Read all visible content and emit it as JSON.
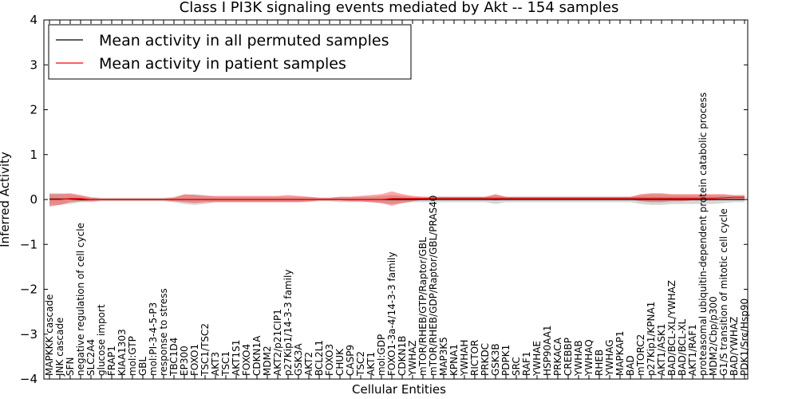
{
  "chart_data": {
    "type": "line",
    "title": "Class I PI3K signaling events mediated by Akt -- 154 samples",
    "xlabel": "Cellular Entities",
    "ylabel": "Inferred Activity",
    "ylim": [
      -4,
      4
    ],
    "yticks": [
      -4,
      -3,
      -2,
      -1,
      0,
      1,
      2,
      3,
      4
    ],
    "ytick_labels": [
      "−4",
      "−3",
      "−2",
      "−1",
      "0",
      "1",
      "2",
      "3",
      "4"
    ],
    "legend_position": "top-left",
    "categories": [
      "MAPKKK cascade",
      "JNK cascade",
      "SFN",
      "negative regulation of cell cycle",
      "SLC2A4",
      "glucose import",
      "FRAP1",
      "KIAA1303",
      "mol:GTP",
      "GBL",
      "mol:PI-3-4-5-P3",
      "response to stress",
      "TBC1D4",
      "EP300",
      "FOXO1",
      "TSC1/TSC2",
      "AKT3",
      "TSC1",
      "AKT1S1",
      "FOXO4",
      "CDKN1A",
      "MDM2",
      "AKT2/p21CIP1",
      "p27Kip1/14-3-3 family",
      "GSK3A",
      "AKT2",
      "BCL2L1",
      "FOXO3",
      "CHUK",
      "CASP9",
      "TSC2",
      "AKT1",
      "mol:GDP",
      "FOXO1-3a-4/14-3-3 family",
      "CDKN1B",
      "YWHAZ",
      "mTOR/RHEB/GTP/Raptor/GBL",
      "mTOR/RHEB/GDP/Raptor/GBL/PRAS40",
      "MAP3K5",
      "KPNA1",
      "YWHAH",
      "RICTOR",
      "PRKDC",
      "GSK3B",
      "PDPK1",
      "SRC",
      "RAF1",
      "YWHAE",
      "HSP90AA1",
      "PRKACA",
      "CREBBP",
      "YWHAB",
      "YWHAQ",
      "RHEB",
      "YWHAG",
      "MAPKAP1",
      "BAD",
      "mTORC2",
      "p27Kip1/KPNA1",
      "AKT1/ASK1",
      "BAD/BCL-XL/YWHAZ",
      "BAD/BCL-XL",
      "AKT1/RAF1",
      "proteasomal ubiquitin-dependent protein catabolic process",
      "MDM2/Cbp/p300",
      "G1/S transition of mitotic cell cycle",
      "BAD/YWHAZ",
      "PDK1/Src/Hsp90"
    ],
    "series": [
      {
        "name": "Mean activity in all permuted samples",
        "color": "#000000",
        "values": [
          0.01,
          0.01,
          0.01,
          0.0,
          0.0,
          0.0,
          0.0,
          0.0,
          0.0,
          0.0,
          0.0,
          0.0,
          0.0,
          0.0,
          0.0,
          0.0,
          0.0,
          0.0,
          0.0,
          0.0,
          0.0,
          0.0,
          0.0,
          0.0,
          0.0,
          0.0,
          0.0,
          0.0,
          0.0,
          0.0,
          0.0,
          0.0,
          0.0,
          0.0,
          0.0,
          0.0,
          0.0,
          0.0,
          0.0,
          0.0,
          0.0,
          0.0,
          0.0,
          0.0,
          0.0,
          0.0,
          0.0,
          0.0,
          0.0,
          0.0,
          0.0,
          0.0,
          0.0,
          0.0,
          0.0,
          0.0,
          0.0,
          0.0,
          0.0,
          0.0,
          0.0,
          0.0,
          0.0,
          0.0,
          0.0,
          0.0,
          0.0,
          0.0
        ],
        "band_lower": [
          -0.12,
          -0.12,
          -0.1,
          -0.06,
          -0.06,
          -0.04,
          -0.04,
          -0.04,
          -0.04,
          -0.04,
          -0.04,
          -0.04,
          -0.06,
          -0.1,
          -0.12,
          -0.1,
          -0.06,
          -0.06,
          -0.06,
          -0.06,
          -0.06,
          -0.06,
          -0.06,
          -0.06,
          -0.06,
          -0.06,
          -0.04,
          -0.04,
          -0.06,
          -0.06,
          -0.06,
          -0.06,
          -0.08,
          -0.1,
          -0.08,
          -0.06,
          -0.06,
          -0.06,
          -0.06,
          -0.06,
          -0.06,
          -0.06,
          -0.06,
          -0.1,
          -0.06,
          -0.06,
          -0.06,
          -0.06,
          -0.06,
          -0.06,
          -0.06,
          -0.06,
          -0.06,
          -0.06,
          -0.06,
          -0.06,
          -0.06,
          -0.1,
          -0.12,
          -0.12,
          -0.1,
          -0.1,
          -0.1,
          -0.1,
          -0.1,
          -0.08,
          -0.06,
          -0.06
        ],
        "band_upper": [
          0.14,
          0.14,
          0.12,
          0.08,
          0.06,
          0.04,
          0.04,
          0.04,
          0.04,
          0.04,
          0.04,
          0.04,
          0.06,
          0.1,
          0.12,
          0.1,
          0.06,
          0.06,
          0.06,
          0.06,
          0.06,
          0.06,
          0.06,
          0.06,
          0.06,
          0.06,
          0.04,
          0.04,
          0.06,
          0.06,
          0.06,
          0.06,
          0.08,
          0.1,
          0.08,
          0.06,
          0.06,
          0.06,
          0.06,
          0.06,
          0.06,
          0.06,
          0.06,
          0.1,
          0.06,
          0.06,
          0.06,
          0.06,
          0.06,
          0.06,
          0.06,
          0.06,
          0.06,
          0.06,
          0.06,
          0.06,
          0.06,
          0.1,
          0.12,
          0.12,
          0.1,
          0.1,
          0.1,
          0.1,
          0.1,
          0.1,
          0.08,
          0.08
        ]
      },
      {
        "name": "Mean activity in patient samples",
        "color": "#ff0000",
        "values": [
          0.0,
          0.0,
          0.02,
          0.02,
          0.0,
          0.0,
          0.0,
          0.0,
          0.0,
          0.0,
          0.0,
          0.0,
          0.0,
          0.0,
          0.0,
          0.0,
          0.0,
          0.0,
          0.0,
          0.0,
          0.0,
          0.0,
          0.0,
          0.0,
          0.0,
          0.0,
          0.0,
          0.0,
          0.0,
          0.0,
          0.0,
          0.0,
          0.0,
          0.02,
          0.02,
          0.02,
          0.02,
          0.03,
          0.03,
          0.03,
          0.03,
          0.03,
          0.03,
          0.03,
          0.03,
          0.03,
          0.03,
          0.03,
          0.03,
          0.03,
          0.03,
          0.03,
          0.03,
          0.03,
          0.03,
          0.03,
          0.03,
          0.03,
          0.03,
          0.03,
          0.03,
          0.03,
          0.03,
          0.03,
          0.03,
          0.04,
          0.05,
          0.05
        ],
        "band_lower": [
          -0.16,
          -0.12,
          -0.06,
          -0.04,
          -0.04,
          -0.02,
          -0.02,
          -0.02,
          -0.02,
          -0.02,
          -0.02,
          -0.02,
          -0.04,
          -0.06,
          -0.08,
          -0.06,
          -0.06,
          -0.06,
          -0.06,
          -0.06,
          -0.06,
          -0.06,
          -0.06,
          -0.06,
          -0.06,
          -0.04,
          -0.02,
          -0.02,
          -0.02,
          -0.04,
          -0.04,
          -0.06,
          -0.08,
          -0.14,
          -0.08,
          -0.04,
          0.0,
          0.0,
          0.0,
          0.0,
          0.0,
          0.0,
          0.0,
          -0.02,
          0.0,
          0.0,
          0.0,
          0.0,
          0.0,
          0.0,
          0.0,
          0.0,
          0.0,
          0.0,
          0.0,
          0.0,
          0.0,
          -0.04,
          -0.06,
          -0.06,
          -0.04,
          -0.04,
          -0.02,
          -0.02,
          -0.02,
          0.0,
          0.0,
          0.0
        ],
        "band_upper": [
          0.12,
          0.12,
          0.14,
          0.1,
          0.04,
          0.02,
          0.02,
          0.02,
          0.02,
          0.02,
          0.02,
          0.02,
          0.04,
          0.12,
          0.1,
          0.08,
          0.08,
          0.08,
          0.08,
          0.08,
          0.08,
          0.08,
          0.08,
          0.1,
          0.08,
          0.06,
          0.04,
          0.04,
          0.06,
          0.06,
          0.08,
          0.1,
          0.12,
          0.18,
          0.12,
          0.08,
          0.06,
          0.06,
          0.06,
          0.06,
          0.06,
          0.06,
          0.06,
          0.12,
          0.06,
          0.06,
          0.06,
          0.06,
          0.06,
          0.06,
          0.06,
          0.06,
          0.06,
          0.06,
          0.06,
          0.06,
          0.06,
          0.12,
          0.14,
          0.14,
          0.12,
          0.12,
          0.12,
          0.12,
          0.12,
          0.12,
          0.1,
          0.1
        ]
      }
    ]
  }
}
